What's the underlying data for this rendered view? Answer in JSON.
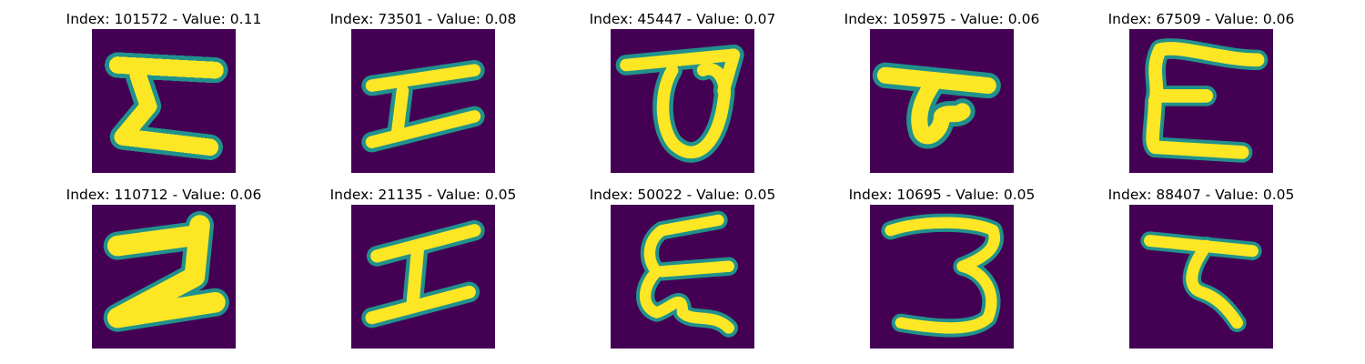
{
  "colors": {
    "background": "#440154",
    "mid": "#21918c",
    "stroke": "#fde725",
    "page": "#ffffff"
  },
  "panels": [
    {
      "title": "Index: 101572 - Value: 0.11",
      "glyph": "sigma-like"
    },
    {
      "title": "Index: 73501 - Value: 0.08",
      "glyph": "I-like"
    },
    {
      "title": "Index: 45447 - Value: 0.07",
      "glyph": "loop-under-bar"
    },
    {
      "title": "Index: 105975 - Value: 0.06",
      "glyph": "T-with-curl"
    },
    {
      "title": "Index: 67509 - Value: 0.06",
      "glyph": "E-like"
    },
    {
      "title": "Index: 110712 - Value: 0.06",
      "glyph": "Z-like"
    },
    {
      "title": "Index: 21135 - Value: 0.05",
      "glyph": "I-like"
    },
    {
      "title": "Index: 50022 - Value: 0.05",
      "glyph": "E-like"
    },
    {
      "title": "Index: 10695 - Value: 0.05",
      "glyph": "3-like"
    },
    {
      "title": "Index: 88407 - Value: 0.05",
      "glyph": "T-with-curl"
    }
  ]
}
